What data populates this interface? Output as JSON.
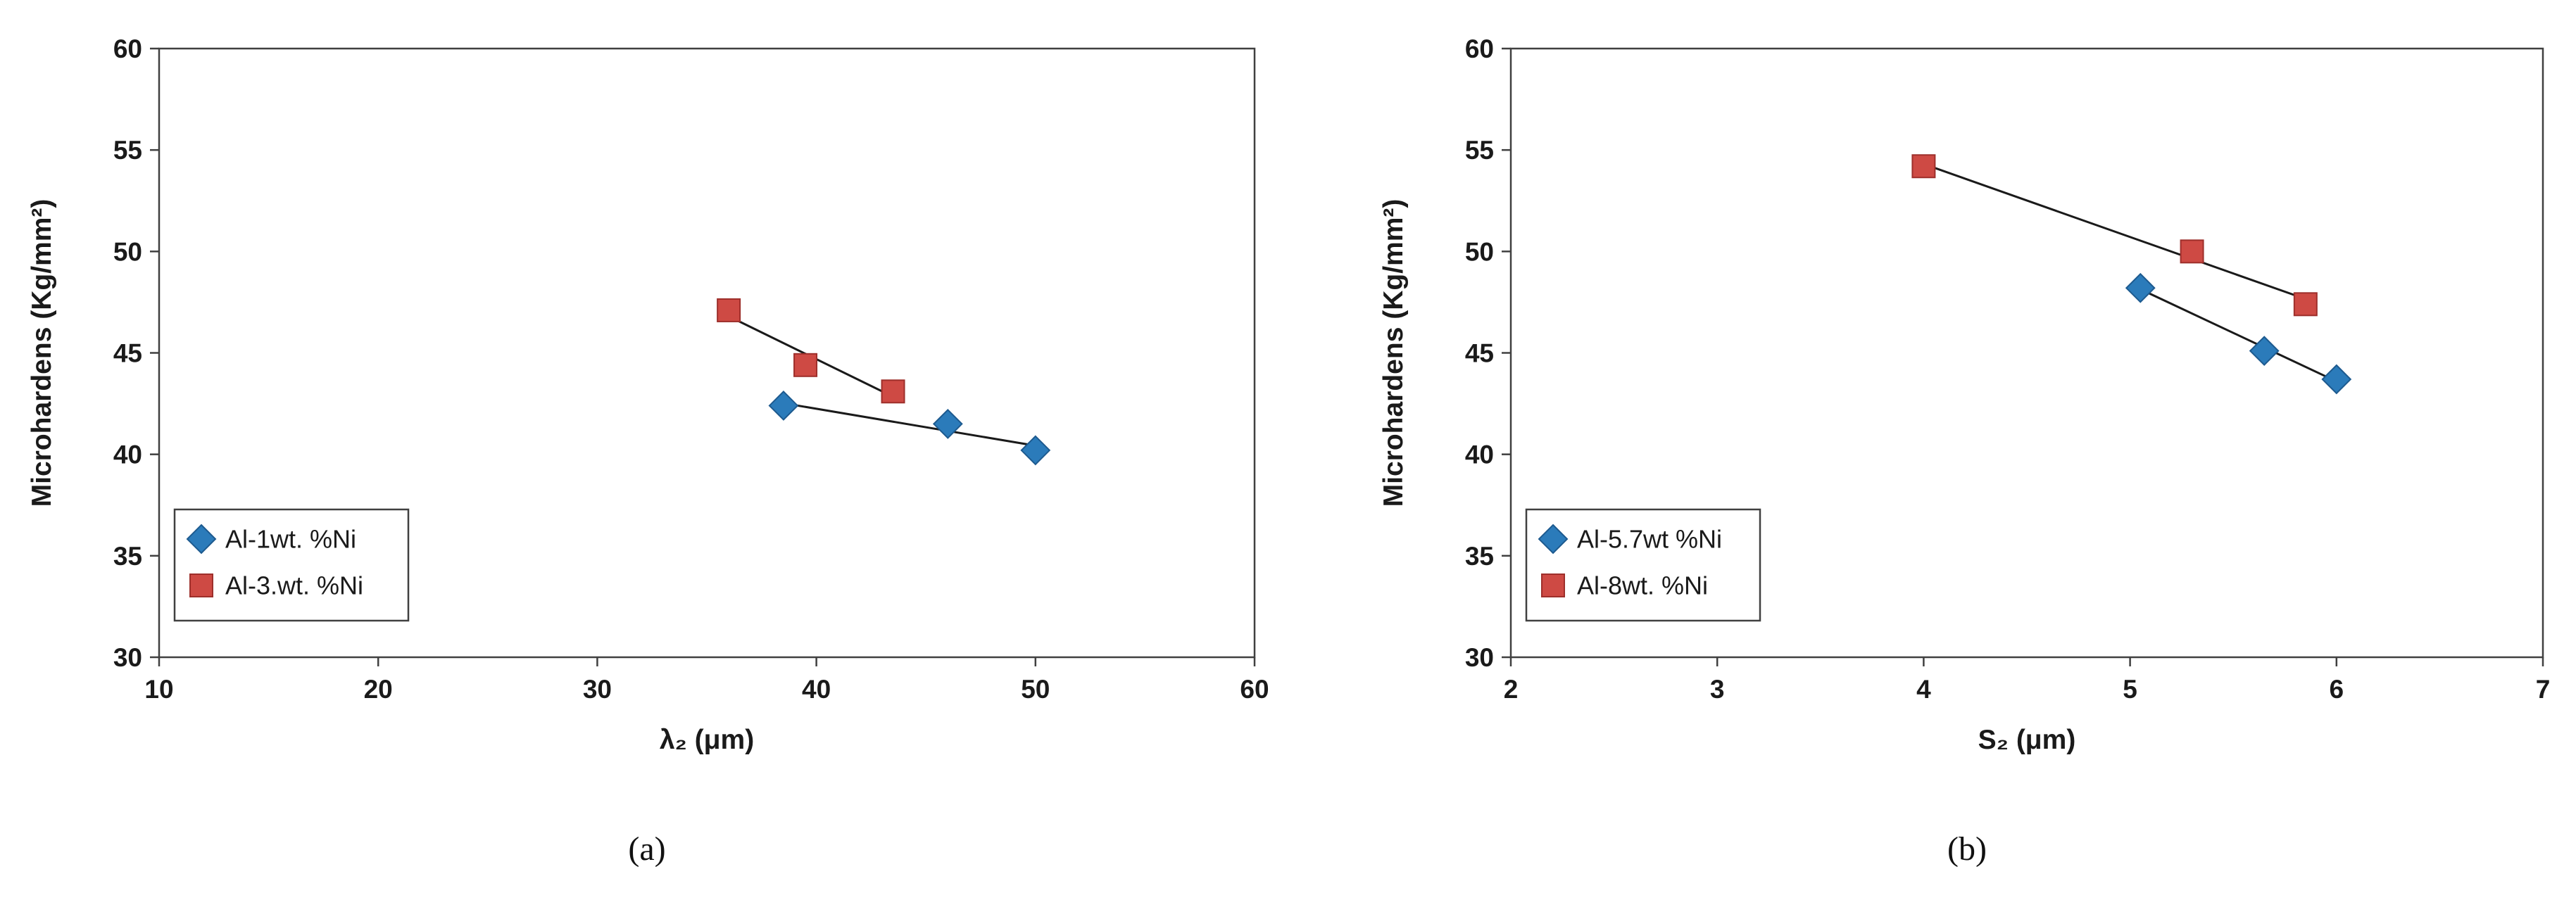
{
  "figure": {
    "captions": {
      "a": "(a)",
      "b": "(b)"
    }
  },
  "chart_data": [
    {
      "type": "scatter",
      "caption": "(a)",
      "title": "",
      "xlabel": "λ₂ (μm)",
      "ylabel": "Microhardens (Kg/mm²)",
      "xlim": [
        10,
        60
      ],
      "ylim": [
        30,
        60
      ],
      "xticks": [
        10,
        20,
        30,
        40,
        50,
        60
      ],
      "yticks": [
        30,
        35,
        40,
        45,
        50,
        55,
        60
      ],
      "grid": false,
      "legend_position": "bottom-left-inside",
      "series": [
        {
          "name": "Al-1wt. %Ni",
          "marker": "diamond",
          "color": "#2B7BBA",
          "edge": "#1D5A8F",
          "trendline": true,
          "points": [
            [
              38.5,
              42.4
            ],
            [
              46.0,
              41.5
            ],
            [
              50.0,
              40.2
            ]
          ]
        },
        {
          "name": "Al-3.wt. %Ni",
          "marker": "square",
          "color": "#CE4A44",
          "edge": "#9E2F2B",
          "trendline": true,
          "points": [
            [
              36.0,
              47.1
            ],
            [
              39.5,
              44.4
            ],
            [
              43.5,
              43.1
            ]
          ]
        }
      ]
    },
    {
      "type": "scatter",
      "caption": "(b)",
      "title": "",
      "xlabel": "S₂ (μm)",
      "ylabel": "Microhardens (Kg/mm²)",
      "xlim": [
        2,
        7
      ],
      "ylim": [
        30,
        60
      ],
      "xticks": [
        2,
        3,
        4,
        5,
        6,
        7
      ],
      "yticks": [
        30,
        35,
        40,
        45,
        50,
        55,
        60
      ],
      "grid": false,
      "legend_position": "bottom-left-inside",
      "series": [
        {
          "name": "Al-5.7wt %Ni",
          "marker": "diamond",
          "color": "#2B7BBA",
          "edge": "#1D5A8F",
          "trendline": true,
          "points": [
            [
              5.05,
              48.2
            ],
            [
              5.65,
              45.1
            ],
            [
              6.0,
              43.7
            ]
          ]
        },
        {
          "name": "Al-8wt. %Ni",
          "marker": "square",
          "color": "#CE4A44",
          "edge": "#9E2F2B",
          "trendline": true,
          "points": [
            [
              4.0,
              54.2
            ],
            [
              5.3,
              50.0
            ],
            [
              5.85,
              47.4
            ]
          ]
        }
      ]
    }
  ]
}
